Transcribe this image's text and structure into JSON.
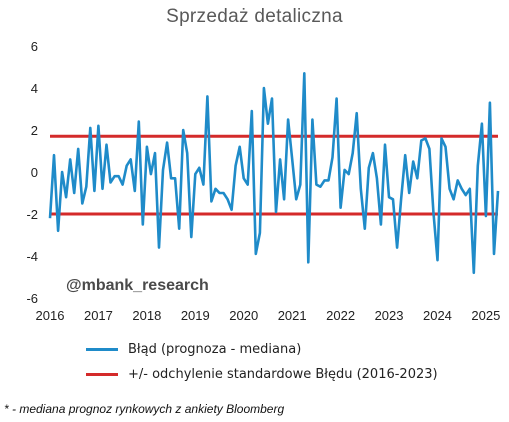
{
  "chart_data": {
    "type": "line",
    "title": "Sprzedaż detaliczna",
    "xlabel": "",
    "ylabel": "",
    "xlim": [
      2016.0,
      2025.25
    ],
    "ylim": [
      -6,
      6
    ],
    "y_ticks": [
      -6,
      -4,
      -2,
      0,
      2,
      4,
      6
    ],
    "x_ticks": [
      2016,
      2017,
      2018,
      2019,
      2020,
      2021,
      2022,
      2023,
      2024,
      2025
    ],
    "grid": false,
    "legend_position": "bottom",
    "series": [
      {
        "name": "Błąd (prognoza - mediana)",
        "color": "#1f8bc9",
        "x": [
          2016.0,
          2016.083,
          2016.167,
          2016.25,
          2016.333,
          2016.417,
          2016.5,
          2016.583,
          2016.667,
          2016.75,
          2016.833,
          2016.917,
          2017.0,
          2017.083,
          2017.167,
          2017.25,
          2017.333,
          2017.417,
          2017.5,
          2017.583,
          2017.667,
          2017.75,
          2017.833,
          2017.917,
          2018.0,
          2018.083,
          2018.167,
          2018.25,
          2018.333,
          2018.417,
          2018.5,
          2018.583,
          2018.667,
          2018.75,
          2018.833,
          2018.917,
          2019.0,
          2019.083,
          2019.167,
          2019.25,
          2019.333,
          2019.417,
          2019.5,
          2019.583,
          2019.667,
          2019.75,
          2019.833,
          2019.917,
          2020.0,
          2020.083,
          2020.167,
          2020.25,
          2020.333,
          2020.417,
          2020.5,
          2020.583,
          2020.667,
          2020.75,
          2020.833,
          2020.917,
          2021.0,
          2021.083,
          2021.167,
          2021.25,
          2021.333,
          2021.417,
          2021.5,
          2021.583,
          2021.667,
          2021.75,
          2021.833,
          2021.917,
          2022.0,
          2022.083,
          2022.167,
          2022.25,
          2022.333,
          2022.417,
          2022.5,
          2022.583,
          2022.667,
          2022.75,
          2022.833,
          2022.917,
          2023.0,
          2023.083,
          2023.167,
          2023.25,
          2023.333,
          2023.417,
          2023.5,
          2023.583,
          2023.667,
          2023.75,
          2023.833,
          2023.917,
          2024.0,
          2024.083,
          2024.167,
          2024.25,
          2024.333,
          2024.417,
          2024.5,
          2024.583,
          2024.667,
          2024.75,
          2024.833,
          2024.917,
          2025.0,
          2025.083,
          2025.167,
          2025.25
        ],
        "y": [
          -2.2,
          0.8,
          -2.8,
          0.0,
          -1.2,
          0.6,
          -1.0,
          1.1,
          -1.5,
          -0.7,
          2.1,
          -0.9,
          2.2,
          -0.8,
          1.3,
          -0.5,
          -0.2,
          -0.2,
          -0.6,
          0.3,
          0.6,
          -0.9,
          2.4,
          -2.5,
          1.2,
          -0.1,
          0.9,
          -3.6,
          0.1,
          1.4,
          -0.3,
          -0.3,
          -2.7,
          2.0,
          0.9,
          -3.1,
          -0.1,
          0.2,
          -0.6,
          3.6,
          -1.4,
          -0.8,
          -1.0,
          -1.0,
          -1.3,
          -1.8,
          0.3,
          1.2,
          -0.3,
          -0.6,
          2.9,
          -3.9,
          -2.9,
          4.0,
          2.3,
          3.5,
          -1.9,
          0.6,
          -1.3,
          2.5,
          0.6,
          -1.3,
          -0.6,
          4.7,
          -4.3,
          2.5,
          -0.6,
          -0.7,
          -0.4,
          -0.4,
          0.7,
          3.5,
          -1.7,
          0.1,
          -0.1,
          0.9,
          2.8,
          -0.8,
          -2.7,
          0.2,
          0.9,
          -0.3,
          -2.5,
          1.3,
          -1.2,
          -1.3,
          -3.6,
          -1.3,
          0.8,
          -1.0,
          0.5,
          -0.3,
          1.5,
          1.6,
          1.1,
          -1.9,
          -4.2,
          1.6,
          1.2,
          -0.8,
          -1.3,
          -0.4,
          -0.8,
          -1.1,
          -0.8,
          -4.8,
          0.3,
          2.3,
          -2.1,
          3.3,
          -3.9,
          -0.9
        ]
      },
      {
        "name": "+/- odchylenie standardowe Błędu (2016-2023)",
        "color": "#d42a2a",
        "upper": 1.7,
        "lower": -2.0
      }
    ]
  },
  "watermark": "@mbank_research",
  "footnote": "* - mediana prognoz rynkowych z ankiety Bloomberg"
}
